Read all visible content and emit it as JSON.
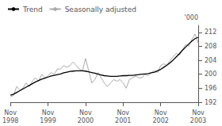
{
  "chart_data": {
    "type": "line",
    "ylabel": "'000",
    "categories": [
      "Nov\n1998",
      null,
      null,
      null,
      null,
      null,
      null,
      null,
      null,
      null,
      null,
      null,
      "Nov\n1999",
      null,
      null,
      null,
      null,
      null,
      null,
      null,
      null,
      null,
      null,
      null,
      "Nov\n2000",
      null,
      null,
      null,
      null,
      null,
      null,
      null,
      null,
      null,
      null,
      null,
      "Nov\n2001",
      null,
      null,
      null,
      null,
      null,
      null,
      null,
      null,
      null,
      null,
      null,
      "Nov\n2002",
      null,
      null,
      null,
      null,
      null,
      null,
      null,
      null,
      null,
      null,
      null,
      "Nov\n2003"
    ],
    "series": [
      {
        "name": "Trend",
        "color": "#000000",
        "values": [
          194.0,
          194.3,
          194.8,
          195.3,
          195.8,
          196.3,
          196.8,
          197.3,
          197.8,
          198.2,
          198.6,
          198.9,
          199.2,
          199.5,
          199.7,
          199.9,
          200.1,
          200.4,
          200.6,
          200.8,
          200.9,
          201.0,
          201.0,
          201.0,
          200.9,
          200.7,
          200.5,
          200.3,
          200.0,
          199.8,
          199.6,
          199.5,
          199.4,
          199.4,
          199.4,
          199.5,
          199.6,
          199.6,
          199.7,
          199.7,
          199.8,
          199.9,
          200.0,
          200.1,
          200.2,
          200.4,
          200.6,
          201.0,
          201.4,
          202.0,
          202.6,
          203.3,
          204.1,
          205.0,
          205.9,
          206.9,
          207.8,
          208.7,
          209.5,
          210.2,
          210.6
        ]
      },
      {
        "name": "Seasonally adjusted",
        "color": "#aaaaaa",
        "values": [
          193.5,
          194.0,
          196.5,
          195.5,
          196.0,
          197.5,
          196.5,
          198.0,
          199.0,
          198.0,
          200.0,
          199.0,
          199.5,
          200.5,
          200.0,
          201.5,
          201.5,
          202.5,
          202.0,
          202.5,
          203.5,
          202.5,
          201.5,
          201.0,
          204.5,
          201.0,
          197.5,
          198.5,
          200.5,
          199.0,
          197.5,
          196.5,
          197.5,
          198.5,
          198.0,
          198.5,
          197.5,
          196.0,
          198.5,
          199.0,
          199.5,
          199.0,
          199.0,
          200.0,
          199.5,
          200.5,
          201.0,
          200.5,
          202.5,
          203.0,
          202.5,
          204.0,
          205.0,
          206.0,
          205.5,
          207.0,
          208.5,
          208.0,
          210.0,
          211.5,
          209.0
        ]
      }
    ],
    "ylim": [
      192,
      214
    ],
    "yticks": [
      192,
      196,
      200,
      204,
      208,
      212
    ],
    "legend": "upper left",
    "grid": false
  }
}
